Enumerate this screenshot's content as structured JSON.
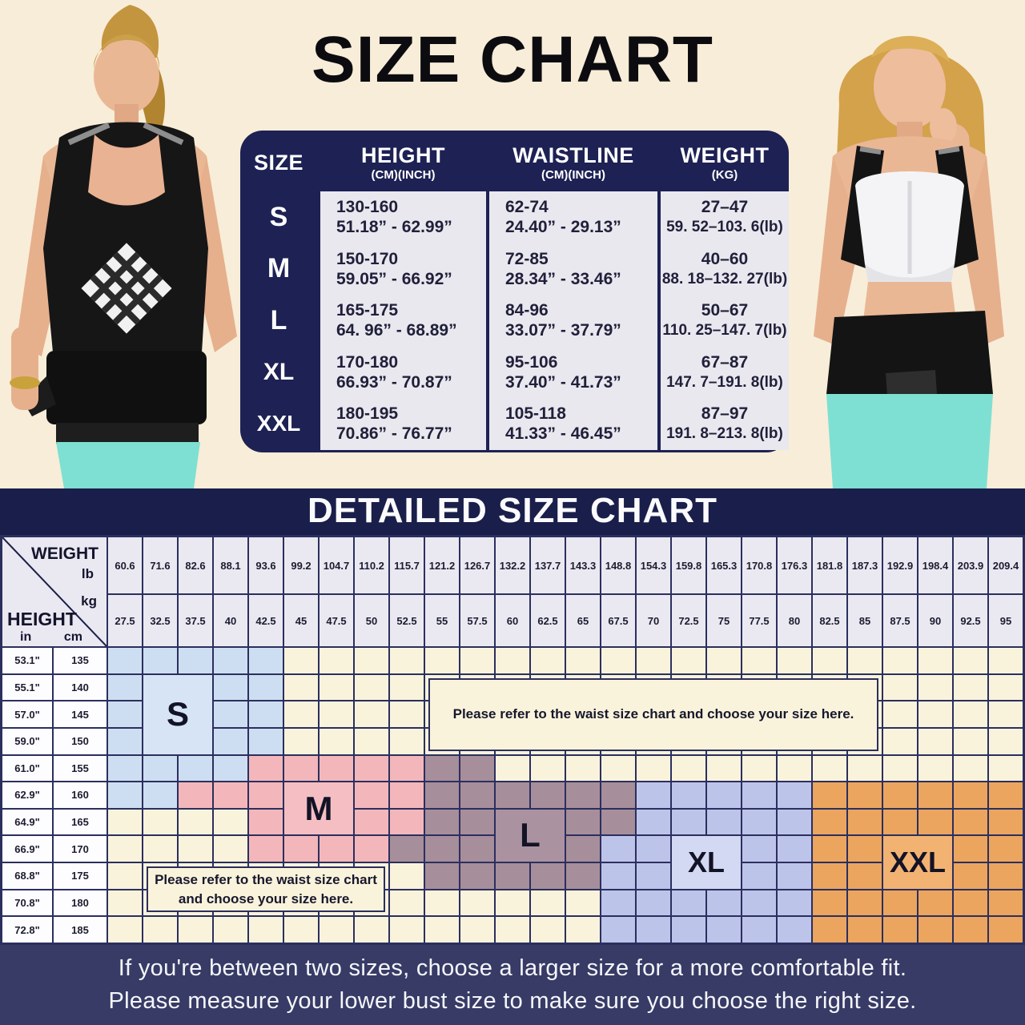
{
  "top": {
    "title": "SIZE CHART",
    "table": {
      "headers": {
        "size": "SIZE",
        "height": "HEIGHT",
        "height_sub": "(CM)(INCH)",
        "waist": "WAISTLINE",
        "waist_sub": "(CM)(INCH)",
        "weight": "WEIGHT",
        "weight_sub": "(KG)"
      }
    }
  },
  "detailed": {
    "title": "DETAILED SIZE CHART",
    "corner": {
      "weight": "WEIGHT",
      "lb": "lb",
      "kg": "kg",
      "height": "HEIGHT",
      "in": "in",
      "cm": "cm"
    },
    "size_blocks": [
      {
        "label": "S",
        "col": 2,
        "colspan": 2,
        "row": 2,
        "rowspan": 3,
        "color": "S",
        "font": 42
      },
      {
        "label": "M",
        "col": 6,
        "colspan": 2,
        "row": 6,
        "rowspan": 2,
        "color": "M",
        "font": 42
      },
      {
        "label": "L",
        "col": 12,
        "colspan": 2,
        "row": 7,
        "rowspan": 2,
        "color": "L",
        "font": 42
      },
      {
        "label": "XL",
        "col": 17,
        "colspan": 2,
        "row": 8,
        "rowspan": 2,
        "color": "XL",
        "font": 36
      },
      {
        "label": "XXL",
        "col": 23,
        "colspan": 2,
        "row": 8,
        "rowspan": 2,
        "color": "XXL",
        "font": 36
      }
    ],
    "notes": [
      {
        "lines": [
          "Please refer to the waist size chart and choose your size here."
        ],
        "col": 10,
        "colspan": 13,
        "row": 2,
        "rowspan": 3
      },
      {
        "lines": [
          "Please refer to the waist size chart",
          "and choose your size here."
        ],
        "col": 2,
        "colspan": 7,
        "row": 9,
        "rowspan": 2
      }
    ]
  },
  "footer": {
    "line1": "If you're between two sizes, choose a larger size for a more comfortable fit.",
    "line2": "Please measure your lower bust size to make sure you choose the right size."
  },
  "colors": {
    "navy_table": "#1d2154",
    "navy_band": "#1a1e4a",
    "grid_line": "#2b2f5e",
    "cream_page": "#f8edd8",
    "cells": {
      "": "#faf3dc",
      "S": "#cddef2",
      "M": "#f3b7bb",
      "L": "#a68e9b",
      "XL": "#bdc4ea",
      "XXL": "#eba55f"
    },
    "labels": {
      "S": "#d7e4f6",
      "M": "#f5bec2",
      "L": "#ab92a0",
      "XL": "#d3d8f3",
      "XXL": "#f2b272"
    }
  },
  "chart_data": [
    {
      "type": "table",
      "title": "SIZE CHART",
      "columns": [
        "SIZE",
        "HEIGHT (CM)(INCH)",
        "WAISTLINE (CM)(INCH)",
        "WEIGHT (KG)"
      ],
      "rows": [
        [
          "S",
          "130-160",
          "51.18” - 62.99”",
          "62-74",
          "24.40” - 29.13”",
          "27–47",
          "59. 52–103. 6(lb)"
        ],
        [
          "M",
          "150-170",
          "59.05” - 66.92”",
          "72-85",
          "28.34” - 33.46”",
          "40–60",
          "88. 18–132. 27(lb)"
        ],
        [
          "L",
          "165-175",
          "64. 96” -  68.89”",
          "84-96",
          "33.07” - 37.79”",
          "50–67",
          "110. 25–147. 7(lb)"
        ],
        [
          "XL",
          "170-180",
          "66.93” - 70.87”",
          "95-106",
          "37.40” - 41.73”",
          "67–87",
          "147. 7–191. 8(lb)"
        ],
        [
          "XXL",
          "180-195",
          "70.86” - 76.77”",
          "105-118",
          "41.33” - 46.45”",
          "87–97",
          "191. 8–213. 8(lb)"
        ]
      ]
    },
    {
      "type": "heatmap",
      "title": "DETAILED SIZE CHART",
      "x_weight_lb": [
        "60.6",
        "71.6",
        "82.6",
        "88.1",
        "93.6",
        "99.2",
        "104.7",
        "110.2",
        "115.7",
        "121.2",
        "126.7",
        "132.2",
        "137.7",
        "143.3",
        "148.8",
        "154.3",
        "159.8",
        "165.3",
        "170.8",
        "176.3",
        "181.8",
        "187.3",
        "192.9",
        "198.4",
        "203.9",
        "209.4"
      ],
      "x_weight_kg": [
        "27.5",
        "32.5",
        "37.5",
        "40",
        "42.5",
        "45",
        "47.5",
        "50",
        "52.5",
        "55",
        "57.5",
        "60",
        "62.5",
        "65",
        "67.5",
        "70",
        "72.5",
        "75",
        "77.5",
        "80",
        "82.5",
        "85",
        "87.5",
        "90",
        "92.5",
        "95"
      ],
      "y_height_in": [
        "53.1\"",
        "55.1\"",
        "57.0\"",
        "59.0\"",
        "61.0\"",
        "62.9\"",
        "64.9\"",
        "66.9\"",
        "68.8\"",
        "70.8\"",
        "72.8\""
      ],
      "y_height_cm": [
        "135",
        "140",
        "145",
        "150",
        "155",
        "160",
        "165",
        "170",
        "175",
        "180",
        "185"
      ],
      "cells": [
        [
          "S",
          "S",
          "S",
          "S",
          "S",
          "",
          "",
          "",
          "",
          "",
          "",
          "",
          "",
          "",
          "",
          "",
          "",
          "",
          "",
          "",
          "",
          "",
          "",
          "",
          "",
          ""
        ],
        [
          "S",
          "S",
          "S",
          "S",
          "S",
          "",
          "",
          "",
          "",
          "",
          "",
          "",
          "",
          "",
          "",
          "",
          "",
          "",
          "",
          "",
          "",
          "",
          "",
          "",
          "",
          ""
        ],
        [
          "S",
          "S",
          "S",
          "S",
          "S",
          "",
          "",
          "",
          "",
          "",
          "",
          "",
          "",
          "",
          "",
          "",
          "",
          "",
          "",
          "",
          "",
          "",
          "",
          "",
          "",
          ""
        ],
        [
          "S",
          "S",
          "S",
          "S",
          "S",
          "",
          "",
          "",
          "",
          "",
          "",
          "",
          "",
          "",
          "",
          "",
          "",
          "",
          "",
          "",
          "",
          "",
          "",
          "",
          "",
          ""
        ],
        [
          "S",
          "S",
          "S",
          "S",
          "M",
          "M",
          "M",
          "M",
          "M",
          "L",
          "L",
          "",
          "",
          "",
          "",
          "",
          "",
          "",
          "",
          "",
          "",
          "",
          "",
          "",
          "",
          ""
        ],
        [
          "S",
          "S",
          "M",
          "M",
          "M",
          "M",
          "M",
          "M",
          "M",
          "L",
          "L",
          "L",
          "L",
          "L",
          "L",
          "XL",
          "XL",
          "XL",
          "XL",
          "XL",
          "XXL",
          "XXL",
          "XXL",
          "XXL",
          "XXL",
          "XXL"
        ],
        [
          "",
          "",
          "",
          "",
          "M",
          "M",
          "M",
          "M",
          "M",
          "L",
          "L",
          "L",
          "L",
          "L",
          "L",
          "XL",
          "XL",
          "XL",
          "XL",
          "XL",
          "XXL",
          "XXL",
          "XXL",
          "XXL",
          "XXL",
          "XXL"
        ],
        [
          "",
          "",
          "",
          "",
          "M",
          "M",
          "M",
          "M",
          "L",
          "L",
          "L",
          "L",
          "L",
          "L",
          "XL",
          "XL",
          "XL",
          "XL",
          "XL",
          "XL",
          "XXL",
          "XXL",
          "XXL",
          "XXL",
          "XXL",
          "XXL"
        ],
        [
          "",
          "",
          "",
          "",
          "",
          "",
          "",
          "",
          "",
          "L",
          "L",
          "L",
          "L",
          "L",
          "XL",
          "XL",
          "XL",
          "XL",
          "XL",
          "XL",
          "XXL",
          "XXL",
          "XXL",
          "XXL",
          "XXL",
          "XXL"
        ],
        [
          "",
          "",
          "",
          "",
          "",
          "",
          "",
          "",
          "",
          "",
          "",
          "",
          "",
          "",
          "XL",
          "XL",
          "XL",
          "XL",
          "XL",
          "XL",
          "XXL",
          "XXL",
          "XXL",
          "XXL",
          "XXL",
          "XXL"
        ],
        [
          "",
          "",
          "",
          "",
          "",
          "",
          "",
          "",
          "",
          "",
          "",
          "",
          "",
          "",
          "XL",
          "XL",
          "XL",
          "XL",
          "XL",
          "XL",
          "XXL",
          "XXL",
          "XXL",
          "XXL",
          "XXL",
          "XXL"
        ]
      ]
    }
  ]
}
